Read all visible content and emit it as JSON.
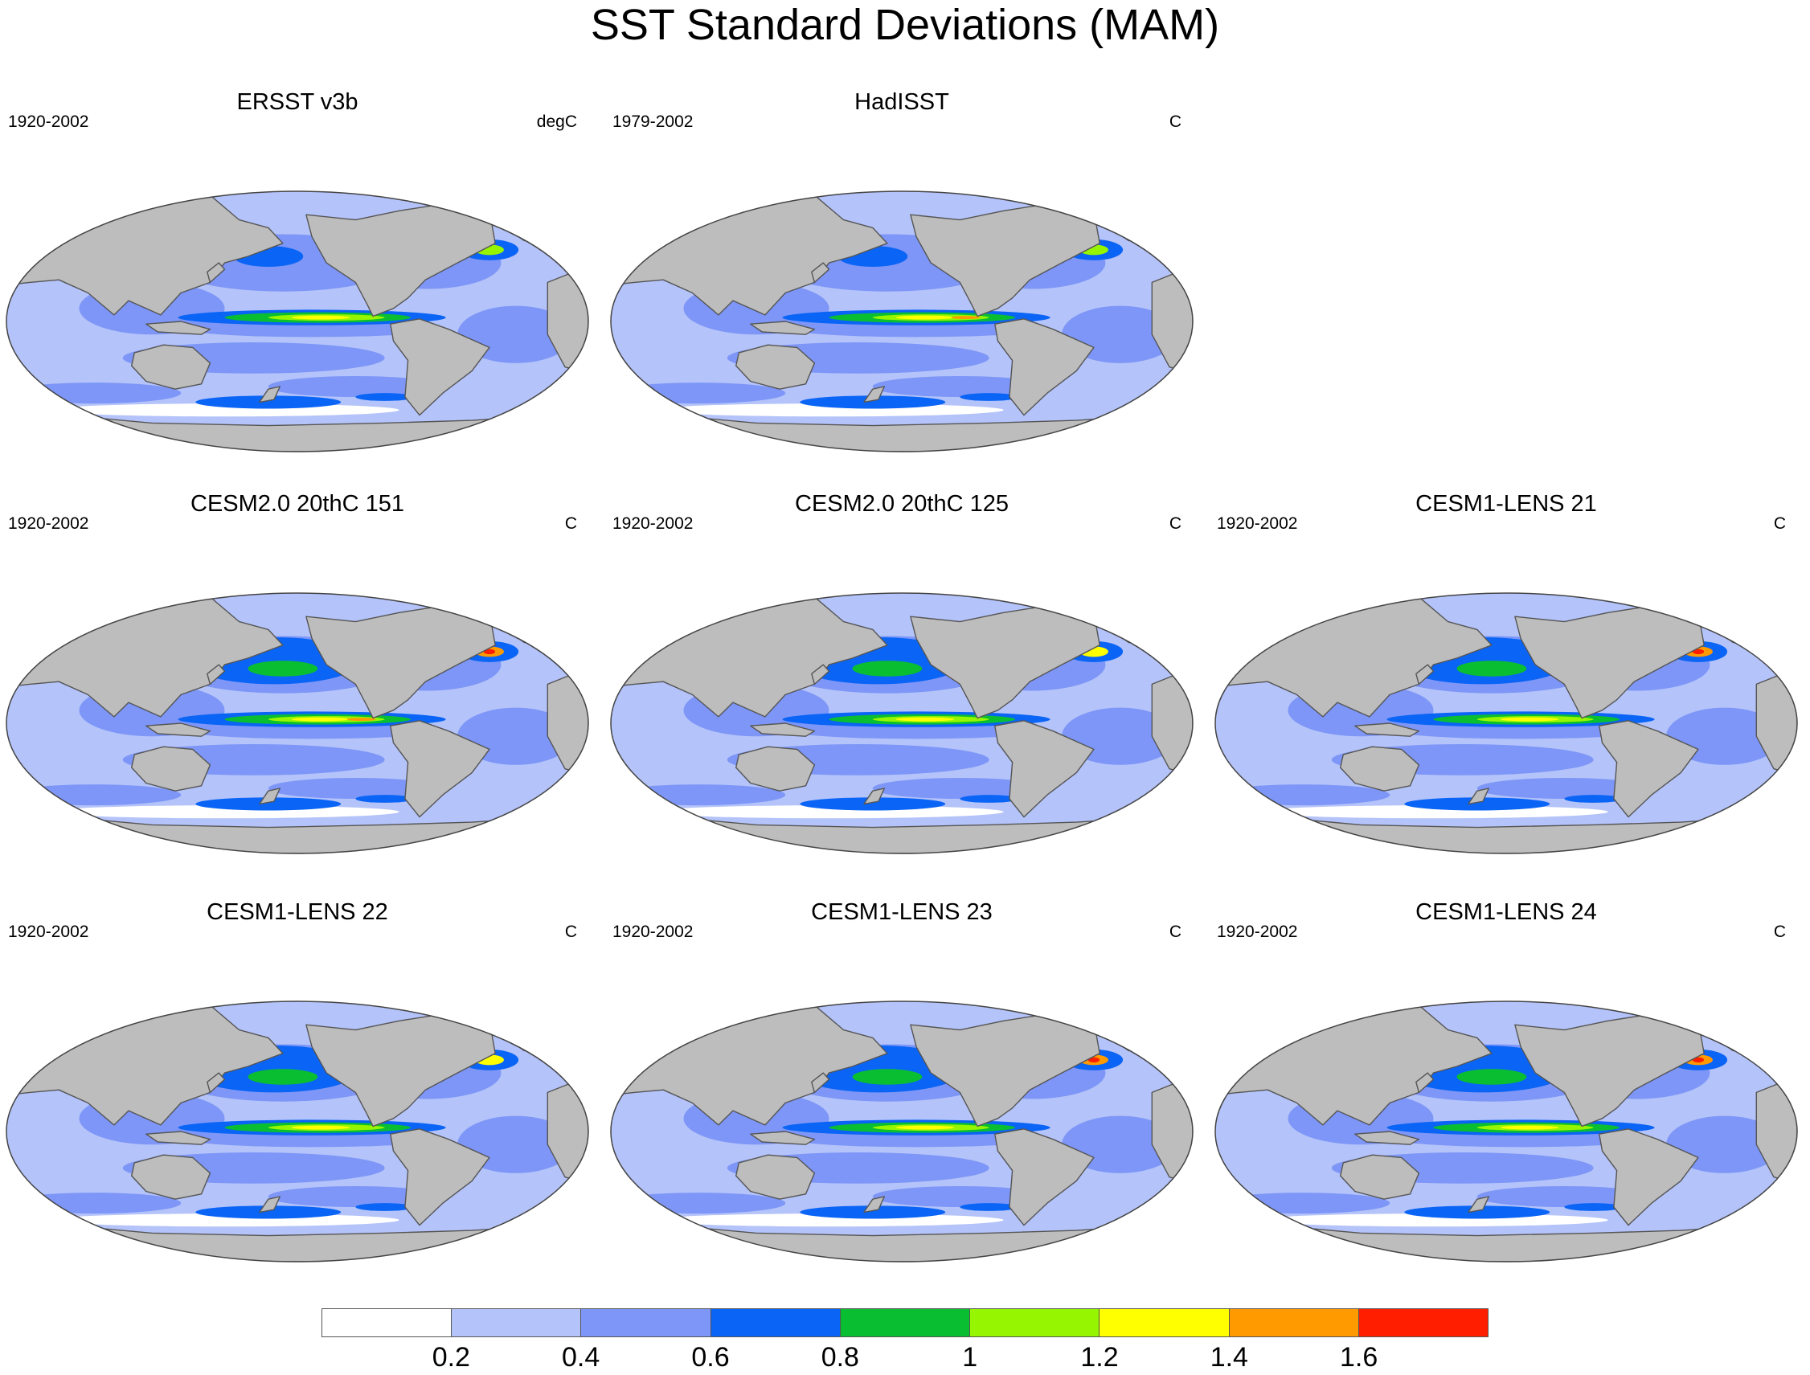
{
  "title": "SST Standard Deviations (MAM)",
  "colors": {
    "land": "#bdbdbd",
    "coast": "#555555",
    "levels": [
      "#ffffff",
      "#b4c3f9",
      "#7d96f7",
      "#0a64f5",
      "#0abe32",
      "#96f500",
      "#ffff00",
      "#ff9a00",
      "#ff1e00"
    ]
  },
  "colorbar": {
    "labels": [
      "0.2",
      "0.4",
      "0.6",
      "0.8",
      "1",
      "1.2",
      "1.4",
      "1.6"
    ]
  },
  "panels": [
    {
      "id": "ersst",
      "title": "ERSST v3b",
      "years": "1920-2002",
      "units": "degC",
      "enso": 2,
      "kuro": 1,
      "gulf": 2
    },
    {
      "id": "hadisst",
      "title": "HadISST",
      "years": "1979-2002",
      "units": "C",
      "enso": 3,
      "kuro": 1,
      "gulf": 2
    },
    {
      "id": "cesm2-151",
      "title": "CESM2.0 20thC 151",
      "years": "1920-2002",
      "units": "C",
      "enso": 3,
      "kuro": 4,
      "gulf": 4
    },
    {
      "id": "cesm2-125",
      "title": "CESM2.0 20thC 125",
      "years": "1920-2002",
      "units": "C",
      "enso": 2,
      "kuro": 4,
      "gulf": 3
    },
    {
      "id": "lens-21",
      "title": "CESM1-LENS 21",
      "years": "1920-2002",
      "units": "C",
      "enso": 2,
      "kuro": 4,
      "gulf": 4
    },
    {
      "id": "lens-22",
      "title": "CESM1-LENS 22",
      "years": "1920-2002",
      "units": "C",
      "enso": 2,
      "kuro": 4,
      "gulf": 3
    },
    {
      "id": "lens-23",
      "title": "CESM1-LENS 23",
      "years": "1920-2002",
      "units": "C",
      "enso": 2,
      "kuro": 4,
      "gulf": 4
    },
    {
      "id": "lens-24",
      "title": "CESM1-LENS 24",
      "years": "1920-2002",
      "units": "C",
      "enso": 2,
      "kuro": 4,
      "gulf": 4
    }
  ]
}
